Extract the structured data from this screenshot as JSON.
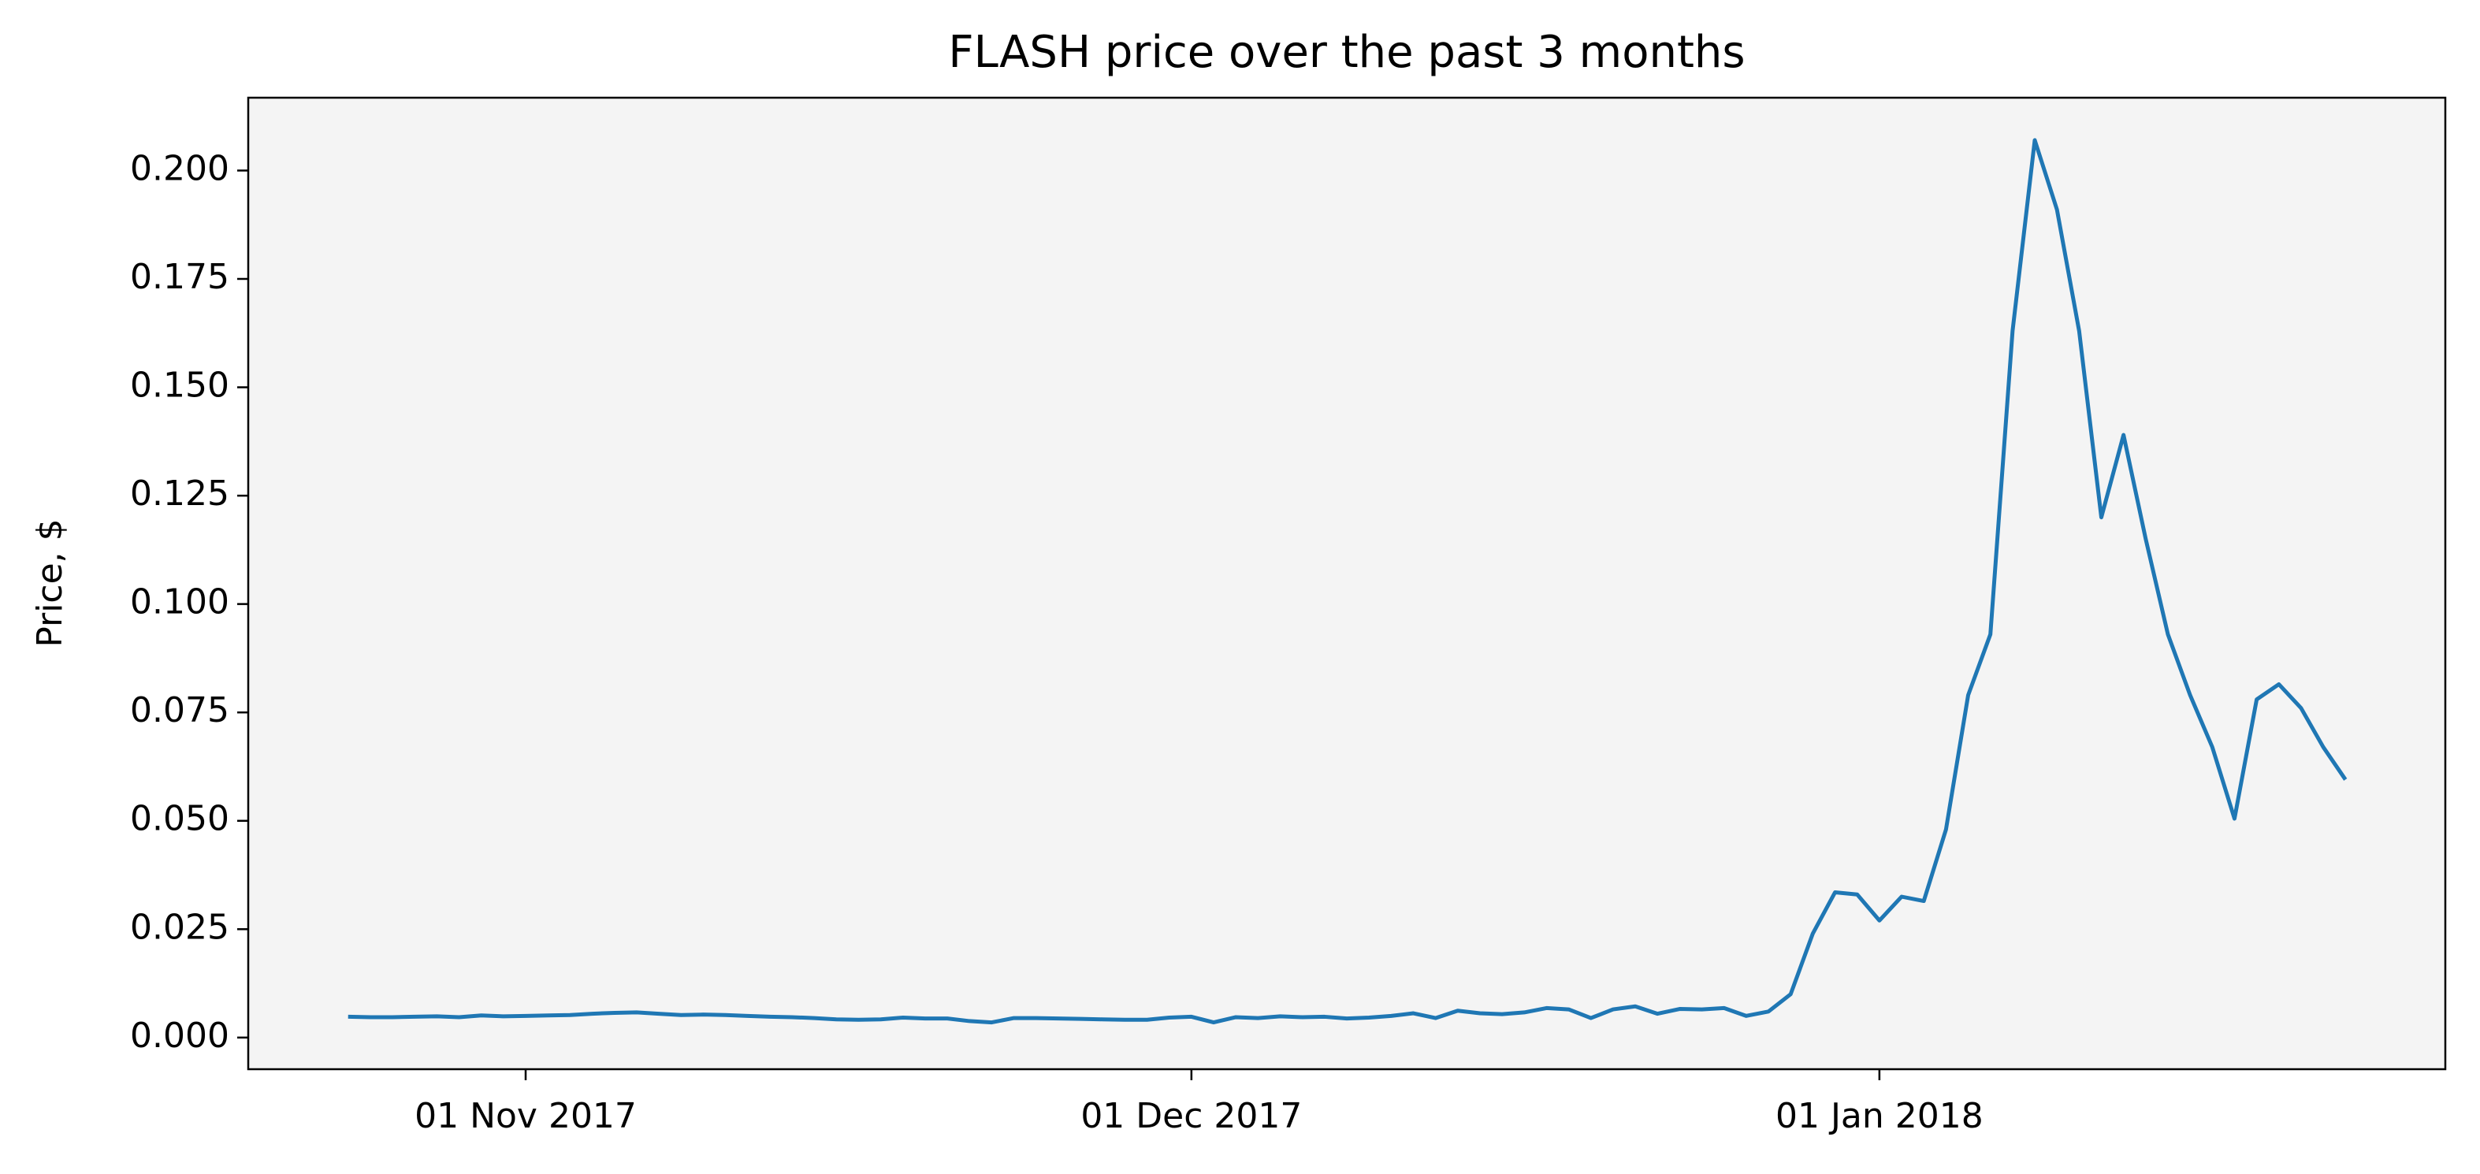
{
  "chart_data": {
    "type": "line",
    "title": "FLASH price over the past 3 months",
    "y_label": "Price, $",
    "color": "#1f77b4",
    "x_start": "2017-10-24",
    "x": [
      "2017-10-24",
      "2017-10-25",
      "2017-10-26",
      "2017-10-27",
      "2017-10-28",
      "2017-10-29",
      "2017-10-30",
      "2017-10-31",
      "2017-11-01",
      "2017-11-02",
      "2017-11-03",
      "2017-11-04",
      "2017-11-05",
      "2017-11-06",
      "2017-11-07",
      "2017-11-08",
      "2017-11-09",
      "2017-11-10",
      "2017-11-11",
      "2017-11-12",
      "2017-11-13",
      "2017-11-14",
      "2017-11-15",
      "2017-11-16",
      "2017-11-17",
      "2017-11-18",
      "2017-11-19",
      "2017-11-20",
      "2017-11-21",
      "2017-11-22",
      "2017-11-23",
      "2017-11-24",
      "2017-11-25",
      "2017-11-26",
      "2017-11-27",
      "2017-11-28",
      "2017-11-29",
      "2017-11-30",
      "2017-12-01",
      "2017-12-02",
      "2017-12-03",
      "2017-12-04",
      "2017-12-05",
      "2017-12-06",
      "2017-12-07",
      "2017-12-08",
      "2017-12-09",
      "2017-12-10",
      "2017-12-11",
      "2017-12-12",
      "2017-12-13",
      "2017-12-14",
      "2017-12-15",
      "2017-12-16",
      "2017-12-17",
      "2017-12-18",
      "2017-12-19",
      "2017-12-20",
      "2017-12-21",
      "2017-12-22",
      "2017-12-23",
      "2017-12-24",
      "2017-12-25",
      "2017-12-26",
      "2017-12-27",
      "2017-12-28",
      "2017-12-29",
      "2017-12-30",
      "2017-12-31",
      "2018-01-01",
      "2018-01-02",
      "2018-01-03",
      "2018-01-04",
      "2018-01-05",
      "2018-01-06",
      "2018-01-07",
      "2018-01-08",
      "2018-01-09",
      "2018-01-10",
      "2018-01-11",
      "2018-01-12",
      "2018-01-13",
      "2018-01-14",
      "2018-01-15",
      "2018-01-16",
      "2018-01-17",
      "2018-01-18",
      "2018-01-19",
      "2018-01-20",
      "2018-01-21",
      "2018-01-22"
    ],
    "values": [
      0.0048,
      0.0047,
      0.0047,
      0.0048,
      0.0049,
      0.0047,
      0.0051,
      0.0049,
      0.005,
      0.0051,
      0.0052,
      0.0055,
      0.0057,
      0.0058,
      0.0055,
      0.0052,
      0.0053,
      0.0052,
      0.005,
      0.0048,
      0.0047,
      0.0045,
      0.0042,
      0.0041,
      0.0042,
      0.0046,
      0.0044,
      0.0044,
      0.0038,
      0.0035,
      0.0045,
      0.0045,
      0.0044,
      0.0043,
      0.0042,
      0.0041,
      0.0041,
      0.0046,
      0.0048,
      0.0035,
      0.0047,
      0.0045,
      0.0049,
      0.0047,
      0.0048,
      0.0044,
      0.0046,
      0.005,
      0.0056,
      0.0045,
      0.0062,
      0.0056,
      0.0054,
      0.0058,
      0.0068,
      0.0065,
      0.0045,
      0.0065,
      0.0072,
      0.0055,
      0.0066,
      0.0065,
      0.0068,
      0.005,
      0.006,
      0.01,
      0.024,
      0.0335,
      0.033,
      0.027,
      0.0325,
      0.0315,
      0.048,
      0.079,
      0.093,
      0.163,
      0.207,
      0.191,
      0.163,
      0.12,
      0.139,
      0.115,
      0.093,
      0.079,
      0.067,
      0.0505,
      0.078,
      0.0815,
      0.076,
      0.067,
      0.0595
    ],
    "xlim": [
      "2017-10-19T12:00",
      "2018-01-26T12:00"
    ],
    "xticks": [
      {
        "value": "2017-11-01",
        "label": "01 Nov 2017"
      },
      {
        "value": "2017-12-01",
        "label": "01 Dec 2017"
      },
      {
        "value": "2018-01-01",
        "label": "01 Jan 2018"
      }
    ],
    "ylim": [
      -0.0073,
      0.2168
    ],
    "yticks": [
      {
        "value": 0,
        "label": "0.000"
      },
      {
        "value": 0.025,
        "label": "0.025"
      },
      {
        "value": 0.05,
        "label": "0.050"
      },
      {
        "value": 0.075,
        "label": "0.075"
      },
      {
        "value": 0.1,
        "label": "0.100"
      },
      {
        "value": 0.125,
        "label": "0.125"
      },
      {
        "value": 0.15,
        "label": "0.150"
      },
      {
        "value": 0.175,
        "label": "0.175"
      },
      {
        "value": 0.2,
        "label": "0.200"
      }
    ],
    "grid": false,
    "plot_background": "#f4f4f4"
  }
}
